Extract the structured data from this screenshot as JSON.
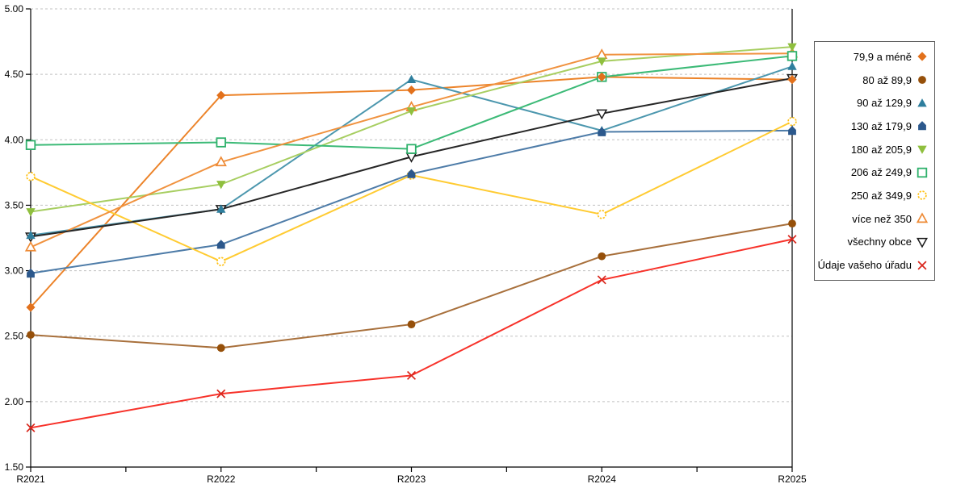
{
  "chart_data": {
    "type": "line",
    "title": "",
    "xlabel": "",
    "ylabel": "",
    "categories": [
      "R2021",
      "R2022",
      "R2023",
      "R2024",
      "R2025"
    ],
    "ylim": [
      1.5,
      5.0
    ],
    "y_tick_step": 0.5,
    "y_tick_labels": [
      "5.00",
      "4.50",
      "4.00",
      "3.50",
      "3.00",
      "2.50",
      "2.00",
      "1.50"
    ],
    "grid": "horizontal-dashed",
    "grid_color": "#C0C0C0",
    "axis_color": "#000000",
    "legend_position": "right",
    "series": [
      {
        "name": "79,9 a méně",
        "marker": "diamond",
        "color": "#E2711C",
        "line_color": "#EC8329",
        "values": [
          2.72,
          4.34,
          4.38,
          4.48,
          4.46
        ]
      },
      {
        "name": "80 až 89,9",
        "marker": "circle",
        "color": "#96500A",
        "line_color": "#A8703C",
        "values": [
          2.51,
          2.41,
          2.59,
          3.11,
          3.36
        ]
      },
      {
        "name": "90 až 129,9",
        "marker": "triangle-up",
        "color": "#2E7E9D",
        "line_color": "#4C97AE",
        "values": [
          3.27,
          3.47,
          4.46,
          4.07,
          4.56
        ]
      },
      {
        "name": "130 až 179,9",
        "marker": "pentagon",
        "color": "#2C588C",
        "line_color": "#4E7CA8",
        "values": [
          2.98,
          3.2,
          3.74,
          4.06,
          4.07
        ]
      },
      {
        "name": "180 až 205,9",
        "marker": "triangle-down",
        "color": "#8FBF3E",
        "line_color": "#A7CE61",
        "values": [
          3.45,
          3.66,
          4.22,
          4.6,
          4.71
        ]
      },
      {
        "name": "206 až 249,9",
        "marker": "square-open",
        "color": "#2EB16B",
        "line_color": "#3CBA77",
        "values": [
          3.96,
          3.98,
          3.93,
          4.48,
          4.64
        ]
      },
      {
        "name": "250 až 349,9",
        "marker": "circle-open",
        "color": "#FFC114",
        "line_color": "#FFCB32",
        "values": [
          3.72,
          3.07,
          3.73,
          3.43,
          4.14
        ]
      },
      {
        "name": "více než 350",
        "marker": "triangle-up-open",
        "color": "#EE8A35",
        "line_color": "#F0923F",
        "values": [
          3.18,
          3.83,
          4.25,
          4.65,
          4.66
        ]
      },
      {
        "name": "všechny obce",
        "marker": "triangle-down-open",
        "color": "#1A1A1A",
        "line_color": "#262626",
        "values": [
          3.26,
          3.47,
          3.87,
          4.2,
          4.47
        ]
      },
      {
        "name": "Údaje vašeho úřadu",
        "marker": "x",
        "color": "#D9261C",
        "line_color": "#F7322A",
        "values": [
          1.8,
          2.06,
          2.2,
          2.93,
          3.24
        ]
      }
    ]
  }
}
